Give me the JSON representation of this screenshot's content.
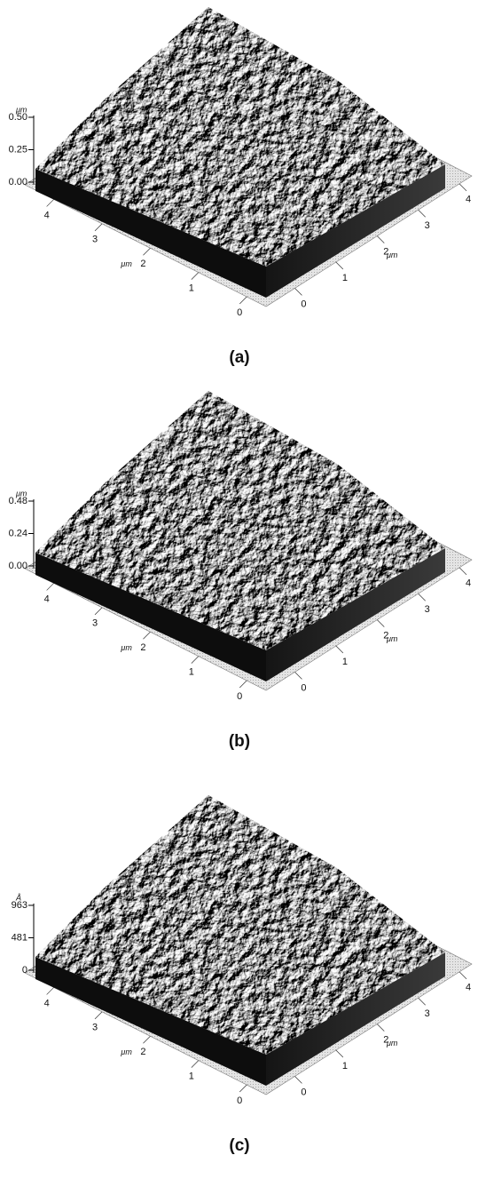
{
  "panels": [
    {
      "caption": "(a)",
      "z_unit": "μm",
      "z_ticks": [
        "0.50",
        "0.25",
        "0.00"
      ],
      "x_unit": "μm",
      "x_ticks": [
        "4",
        "3",
        "2",
        "1",
        "0"
      ],
      "y_unit": "μm",
      "y_ticks": [
        "0",
        "1",
        "2",
        "3",
        "4"
      ]
    },
    {
      "caption": "(b)",
      "z_unit": "μm",
      "z_ticks": [
        "0.48",
        "0.24",
        "0.00"
      ],
      "x_unit": "μm",
      "x_ticks": [
        "4",
        "3",
        "2",
        "1",
        "0"
      ],
      "y_unit": "μm",
      "y_ticks": [
        "0",
        "1",
        "2",
        "3",
        "4"
      ]
    },
    {
      "caption": "(c)",
      "z_unit": "Å",
      "z_ticks": [
        "963",
        "481",
        "0"
      ],
      "x_unit": "μm",
      "x_ticks": [
        "4",
        "3",
        "2",
        "1",
        "0"
      ],
      "y_unit": "μm",
      "y_ticks": [
        "0",
        "1",
        "2",
        "3",
        "4"
      ]
    }
  ]
}
